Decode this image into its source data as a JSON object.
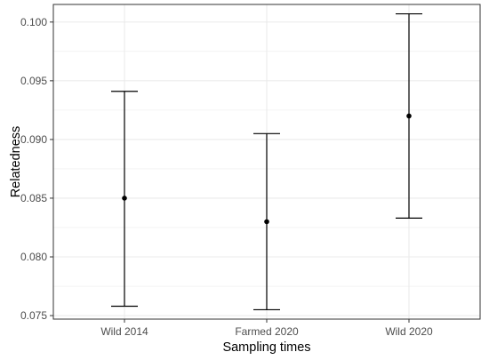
{
  "chart_data": {
    "type": "scatter",
    "title": "",
    "xlabel": "Sampling times",
    "ylabel": "Relatedness",
    "categories": [
      "Wild 2014",
      "Farmed 2020",
      "Wild 2020"
    ],
    "series": [
      {
        "values": [
          0.085,
          0.083,
          0.092
        ],
        "lower": [
          0.0758,
          0.0755,
          0.0833
        ],
        "upper": [
          0.0941,
          0.0905,
          0.1007
        ]
      }
    ],
    "ylim": [
      0.0747,
      0.1015
    ],
    "yticks": [
      0.075,
      0.08,
      0.085,
      0.09,
      0.095,
      0.1
    ],
    "ytick_labels": [
      "0.075",
      "0.080",
      "0.085",
      "0.090",
      "0.095",
      "0.100"
    ],
    "grid": true,
    "legend": "none",
    "colors": {
      "point": "#000000",
      "errorbar": "#000000",
      "grid": "#ebebeb",
      "frame": "#333333"
    }
  }
}
